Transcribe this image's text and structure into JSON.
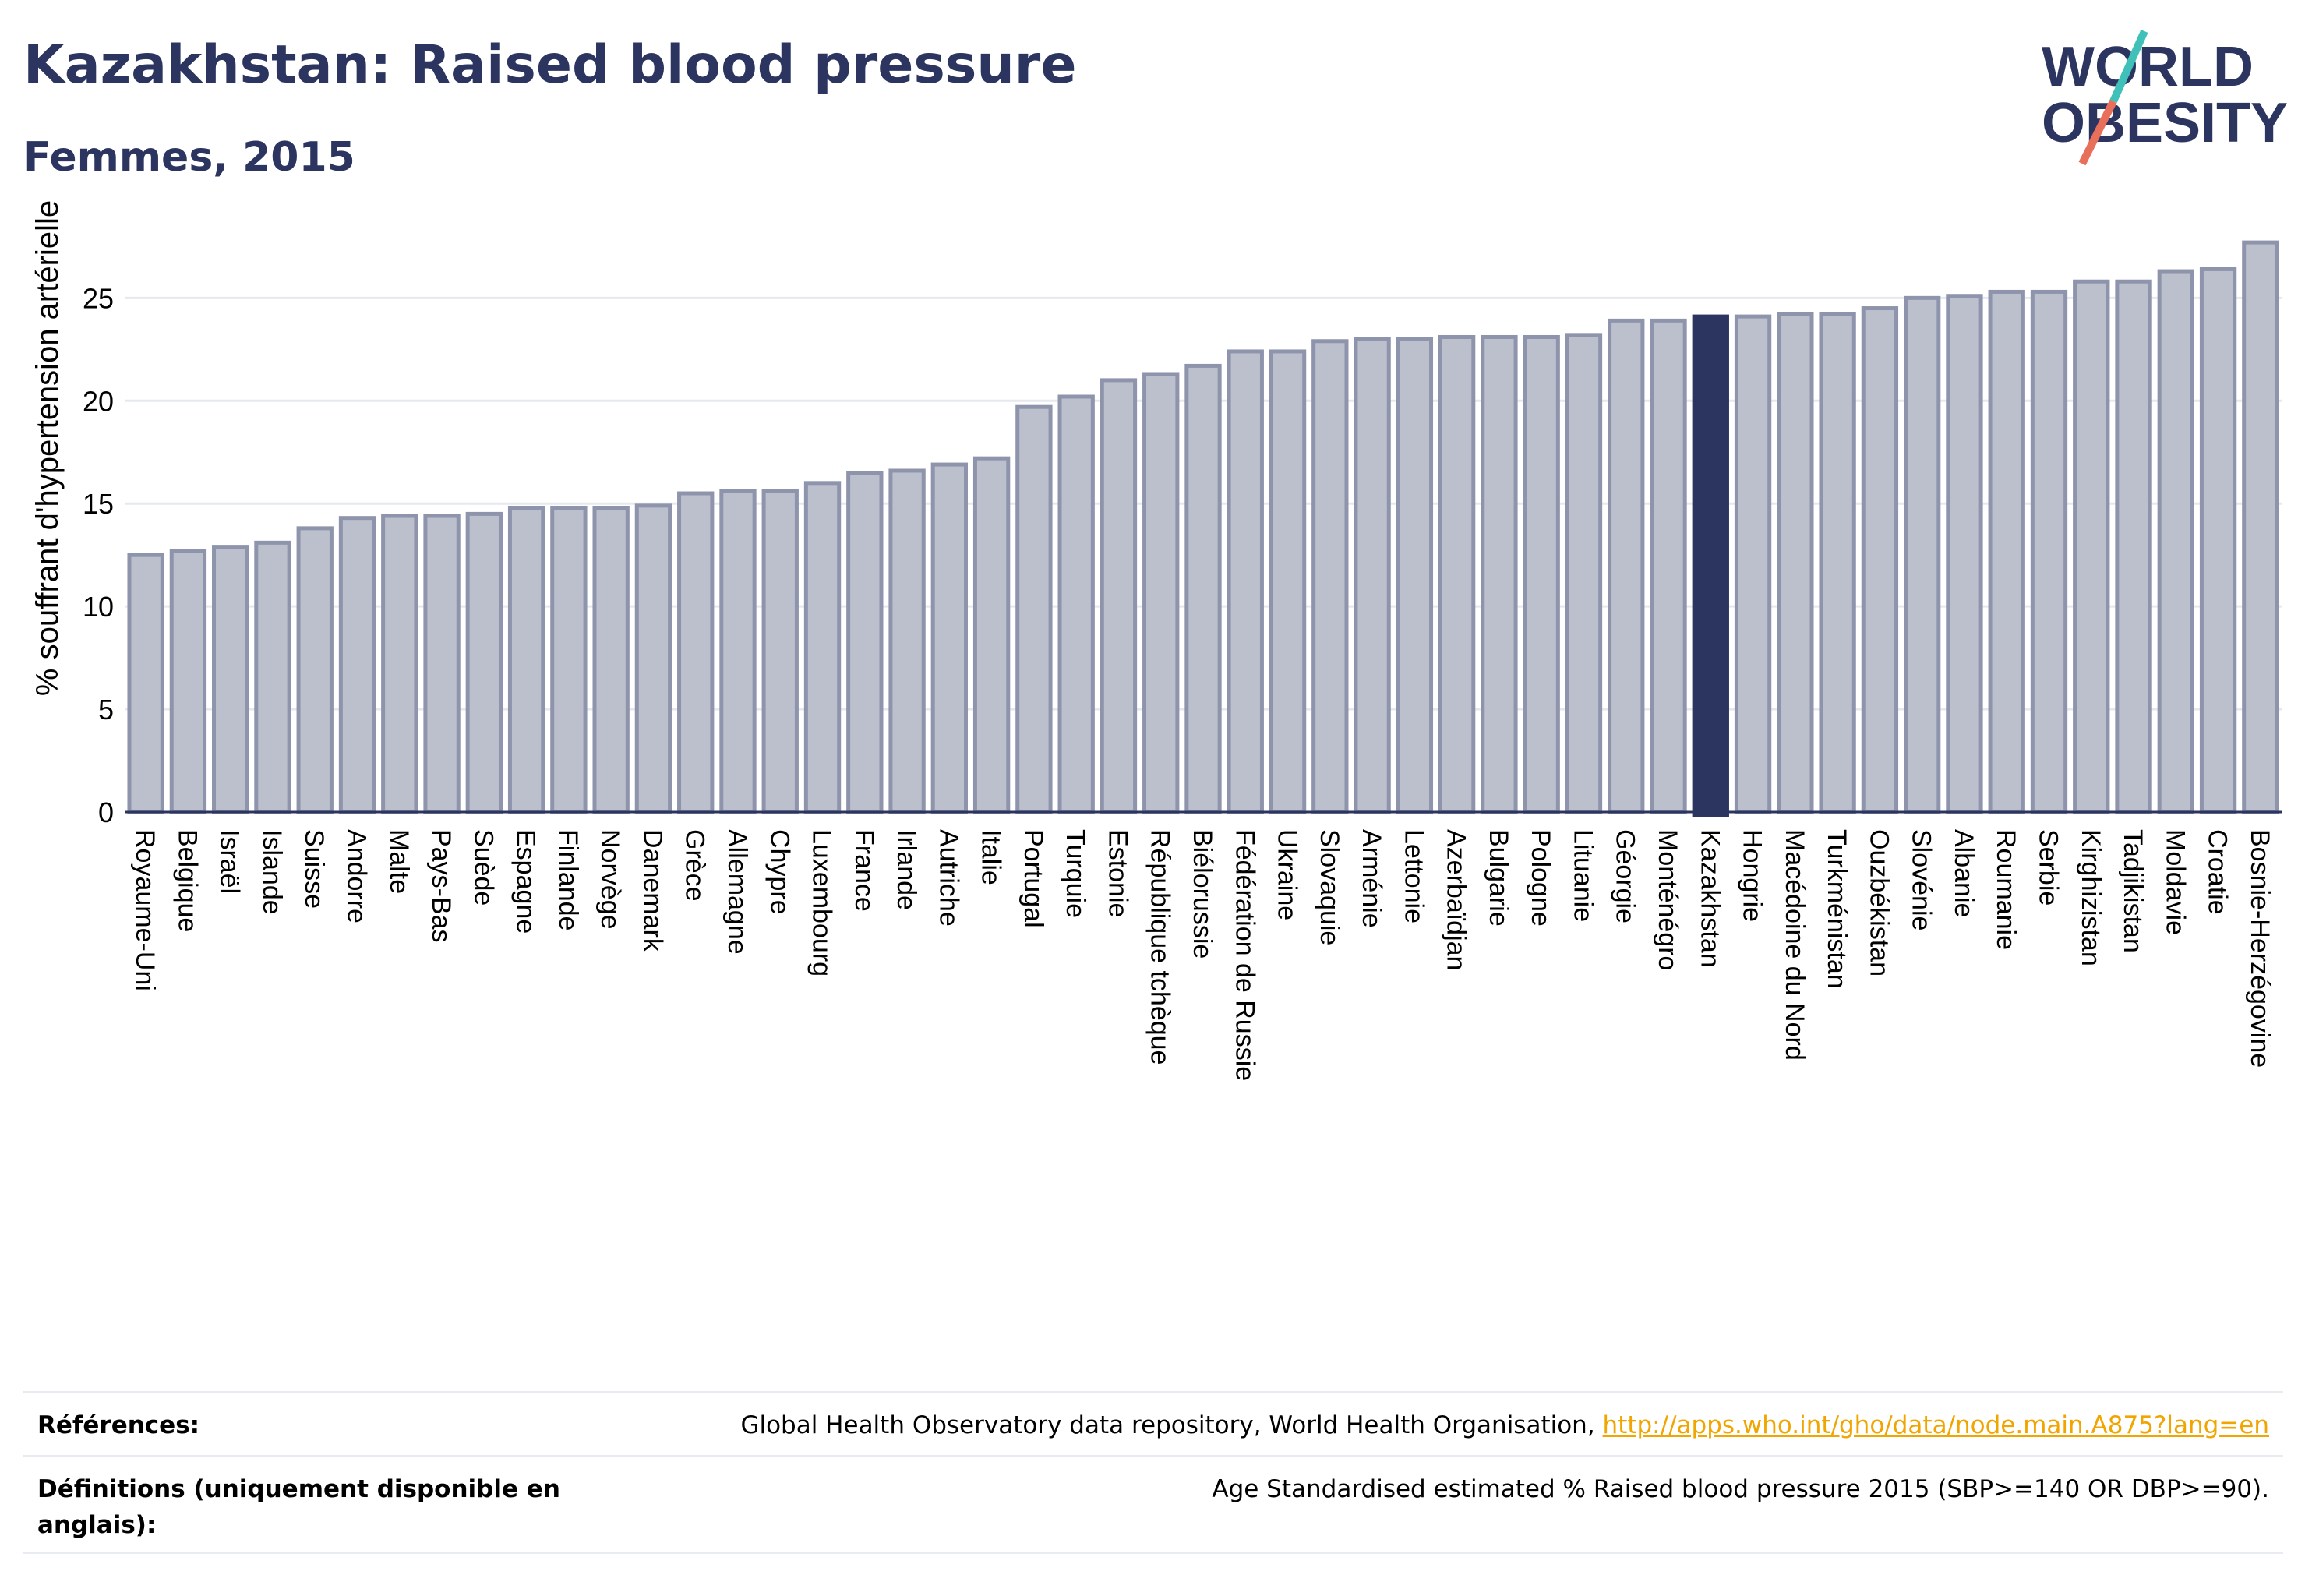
{
  "header": {
    "title": "Kazakhstan: Raised blood pressure",
    "subtitle": "Femmes, 2015"
  },
  "logo": {
    "line1": "WORLD",
    "line2": "OBESITY",
    "text_color": "#2b3560",
    "slash_color_top": "#3fc0b8",
    "slash_color_bottom": "#e8705b"
  },
  "colors": {
    "bar_fill": "#bcc0cd",
    "bar_stroke": "#8e94ab",
    "highlight": "#2b3560",
    "grid": "#e6e8ef",
    "axis": "#2b3560"
  },
  "chart_data": {
    "type": "bar",
    "title": "Kazakhstan: Raised blood pressure",
    "subtitle": "Femmes, 2015",
    "xlabel": "",
    "ylabel": "% souffrant d'hypertension artérielle",
    "ylim": [
      0,
      28.5
    ],
    "yticks": [
      0,
      5,
      10,
      15,
      20,
      25
    ],
    "grid": true,
    "highlight": "Kazakhstan",
    "categories": [
      "Royaume-Uni",
      "Belgique",
      "Israël",
      "Islande",
      "Suisse",
      "Andorre",
      "Malte",
      "Pays-Bas",
      "Suède",
      "Espagne",
      "Finlande",
      "Norvège",
      "Danemark",
      "Grèce",
      "Allemagne",
      "Chypre",
      "Luxembourg",
      "France",
      "Irlande",
      "Autriche",
      "Italie",
      "Portugal",
      "Turquie",
      "Estonie",
      "République tchèque",
      "Biélorussie",
      "Fédération de Russie",
      "Ukraine",
      "Slovaquie",
      "Arménie",
      "Lettonie",
      "Azerbaïdjan",
      "Bulgarie",
      "Pologne",
      "Lituanie",
      "Géorgie",
      "Monténégro",
      "Kazakhstan",
      "Hongrie",
      "Macédoine du Nord",
      "Turkménistan",
      "Ouzbékistan",
      "Slovénie",
      "Albanie",
      "Roumanie",
      "Serbie",
      "Kirghizistan",
      "Tadjikistan",
      "Moldavie",
      "Croatie",
      "Bosnie-Herzégovine"
    ],
    "values": [
      12.5,
      12.7,
      12.9,
      13.1,
      13.8,
      14.3,
      14.4,
      14.4,
      14.5,
      14.8,
      14.8,
      14.8,
      14.9,
      15.5,
      15.6,
      15.6,
      16.0,
      16.5,
      16.6,
      16.9,
      17.2,
      19.7,
      20.2,
      21.0,
      21.3,
      21.7,
      22.4,
      22.4,
      22.9,
      23.0,
      23.0,
      23.1,
      23.1,
      23.1,
      23.2,
      23.9,
      23.9,
      24.1,
      24.1,
      24.2,
      24.2,
      24.5,
      25.0,
      25.1,
      25.3,
      25.3,
      25.8,
      25.8,
      26.3,
      26.4,
      27.7
    ]
  },
  "footer": {
    "references_label": "Références:",
    "references_text": "Global Health Observatory data repository, World Health Organisation,",
    "references_link": "http://apps.who.int/gho/data/node.main.A875?lang=en",
    "definitions_label": "Définitions (uniquement disponible en anglais):",
    "definitions_text": "Age Standardised estimated % Raised blood pressure 2015 (SBP>=140 OR DBP>=90)."
  }
}
